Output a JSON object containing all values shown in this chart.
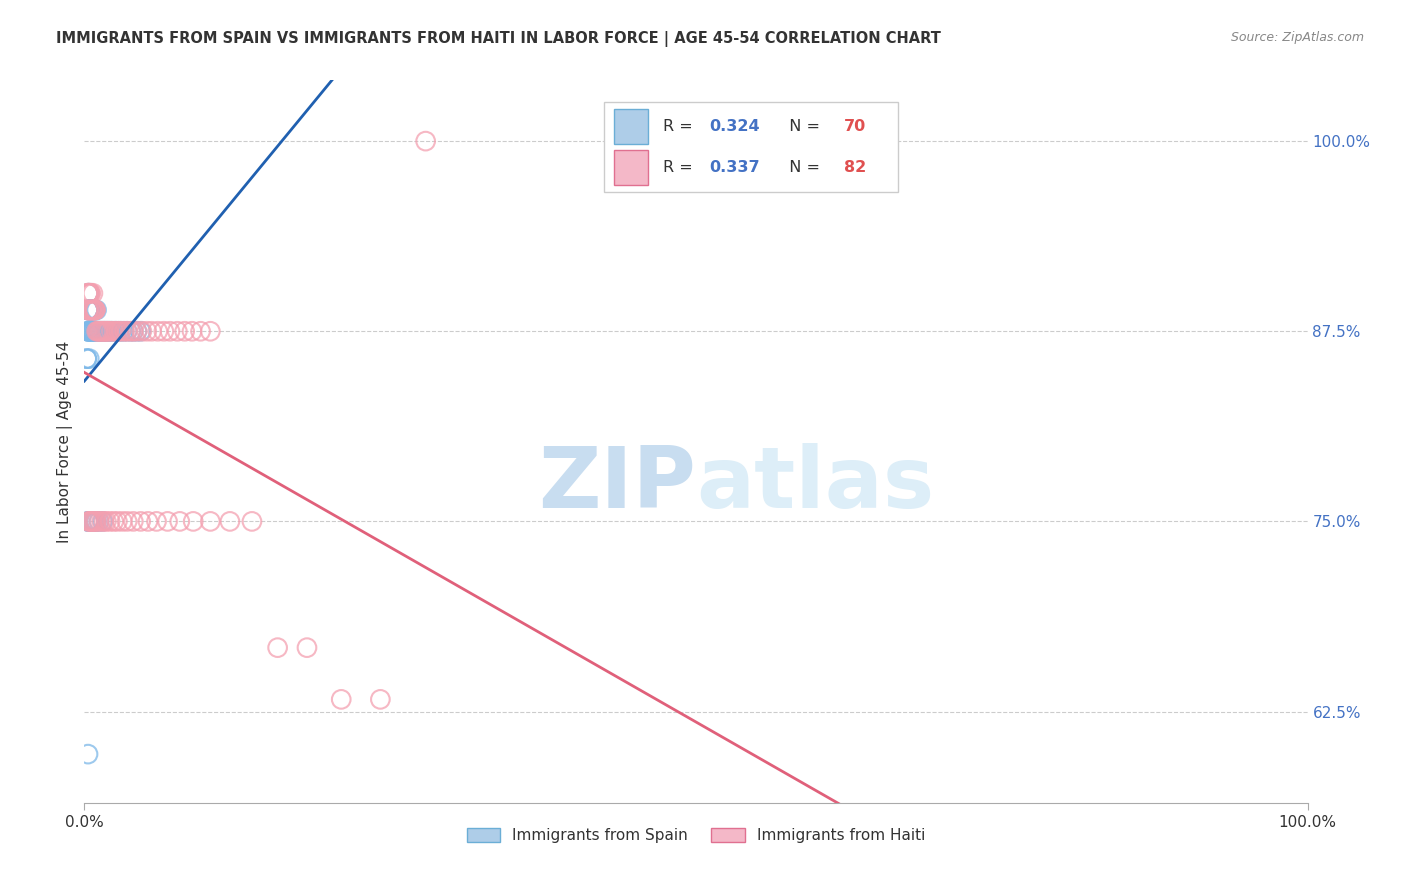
{
  "title": "IMMIGRANTS FROM SPAIN VS IMMIGRANTS FROM HAITI IN LABOR FORCE | AGE 45-54 CORRELATION CHART",
  "source": "Source: ZipAtlas.com",
  "ylabel": "In Labor Force | Age 45-54",
  "spain_color": "#7db8e8",
  "haiti_color": "#f4a0b0",
  "spain_line_color": "#2060b0",
  "haiti_line_color": "#e0607a",
  "background_color": "#ffffff",
  "grid_color": "#cccccc",
  "ytick_color": "#4472c4",
  "xlim": [
    0.0,
    1.0
  ],
  "ylim": [
    0.565,
    1.04
  ],
  "yticks": [
    0.625,
    0.75,
    0.875,
    1.0
  ],
  "ytick_labels": [
    "62.5%",
    "75.0%",
    "87.5%",
    "100.0%"
  ],
  "xticks": [
    0.0,
    1.0
  ],
  "xtick_labels": [
    "0.0%",
    "100.0%"
  ],
  "spain_R": 0.324,
  "spain_N": 70,
  "haiti_R": 0.337,
  "haiti_N": 82,
  "spain_x": [
    0.002,
    0.002,
    0.003,
    0.003,
    0.003,
    0.003,
    0.003,
    0.003,
    0.003,
    0.004,
    0.004,
    0.004,
    0.004,
    0.004,
    0.005,
    0.005,
    0.005,
    0.005,
    0.006,
    0.006,
    0.006,
    0.006,
    0.007,
    0.007,
    0.007,
    0.007,
    0.008,
    0.008,
    0.009,
    0.009,
    0.009,
    0.01,
    0.01,
    0.01,
    0.011,
    0.012,
    0.012,
    0.013,
    0.014,
    0.015,
    0.016,
    0.017,
    0.018,
    0.019,
    0.02,
    0.021,
    0.022,
    0.023,
    0.025,
    0.026,
    0.028,
    0.03,
    0.032,
    0.035,
    0.038,
    0.04,
    0.043,
    0.046,
    0.003,
    0.003,
    0.004,
    0.005,
    0.006,
    0.007,
    0.008,
    0.009,
    0.01,
    0.012,
    0.015,
    0.003
  ],
  "spain_y": [
    0.857,
    0.857,
    0.875,
    0.875,
    0.875,
    0.889,
    0.889,
    0.889,
    0.9,
    0.857,
    0.875,
    0.889,
    0.889,
    0.9,
    0.875,
    0.875,
    0.889,
    0.889,
    0.875,
    0.875,
    0.889,
    0.889,
    0.875,
    0.875,
    0.889,
    0.889,
    0.875,
    0.889,
    0.875,
    0.875,
    0.889,
    0.875,
    0.875,
    0.889,
    0.875,
    0.875,
    0.875,
    0.875,
    0.875,
    0.875,
    0.875,
    0.875,
    0.875,
    0.875,
    0.875,
    0.875,
    0.875,
    0.875,
    0.875,
    0.875,
    0.875,
    0.875,
    0.875,
    0.875,
    0.875,
    0.875,
    0.875,
    0.875,
    0.75,
    0.75,
    0.75,
    0.75,
    0.75,
    0.75,
    0.75,
    0.75,
    0.75,
    0.75,
    0.75,
    0.597
  ],
  "haiti_x": [
    0.003,
    0.003,
    0.003,
    0.003,
    0.003,
    0.004,
    0.004,
    0.005,
    0.005,
    0.005,
    0.006,
    0.006,
    0.007,
    0.007,
    0.008,
    0.008,
    0.009,
    0.009,
    0.01,
    0.011,
    0.012,
    0.013,
    0.014,
    0.015,
    0.016,
    0.017,
    0.018,
    0.019,
    0.02,
    0.022,
    0.024,
    0.026,
    0.028,
    0.03,
    0.033,
    0.035,
    0.038,
    0.04,
    0.043,
    0.047,
    0.051,
    0.055,
    0.06,
    0.065,
    0.07,
    0.076,
    0.082,
    0.088,
    0.095,
    0.103,
    0.003,
    0.004,
    0.005,
    0.006,
    0.007,
    0.008,
    0.009,
    0.01,
    0.012,
    0.014,
    0.016,
    0.018,
    0.021,
    0.024,
    0.027,
    0.031,
    0.035,
    0.04,
    0.046,
    0.052,
    0.059,
    0.068,
    0.078,
    0.089,
    0.103,
    0.119,
    0.137,
    0.158,
    0.182,
    0.21,
    0.242,
    0.279
  ],
  "haiti_y": [
    0.889,
    0.889,
    0.9,
    0.9,
    0.9,
    0.889,
    0.9,
    0.889,
    0.9,
    0.9,
    0.889,
    0.889,
    0.889,
    0.9,
    0.889,
    0.889,
    0.889,
    0.889,
    0.875,
    0.875,
    0.875,
    0.875,
    0.875,
    0.875,
    0.875,
    0.875,
    0.875,
    0.875,
    0.875,
    0.875,
    0.875,
    0.875,
    0.875,
    0.875,
    0.875,
    0.875,
    0.875,
    0.875,
    0.875,
    0.875,
    0.875,
    0.875,
    0.875,
    0.875,
    0.875,
    0.875,
    0.875,
    0.875,
    0.875,
    0.875,
    0.75,
    0.75,
    0.75,
    0.75,
    0.75,
    0.75,
    0.75,
    0.75,
    0.75,
    0.75,
    0.75,
    0.75,
    0.75,
    0.75,
    0.75,
    0.75,
    0.75,
    0.75,
    0.75,
    0.75,
    0.75,
    0.75,
    0.75,
    0.75,
    0.75,
    0.75,
    0.75,
    0.667,
    0.667,
    0.633,
    0.633,
    1.0
  ]
}
